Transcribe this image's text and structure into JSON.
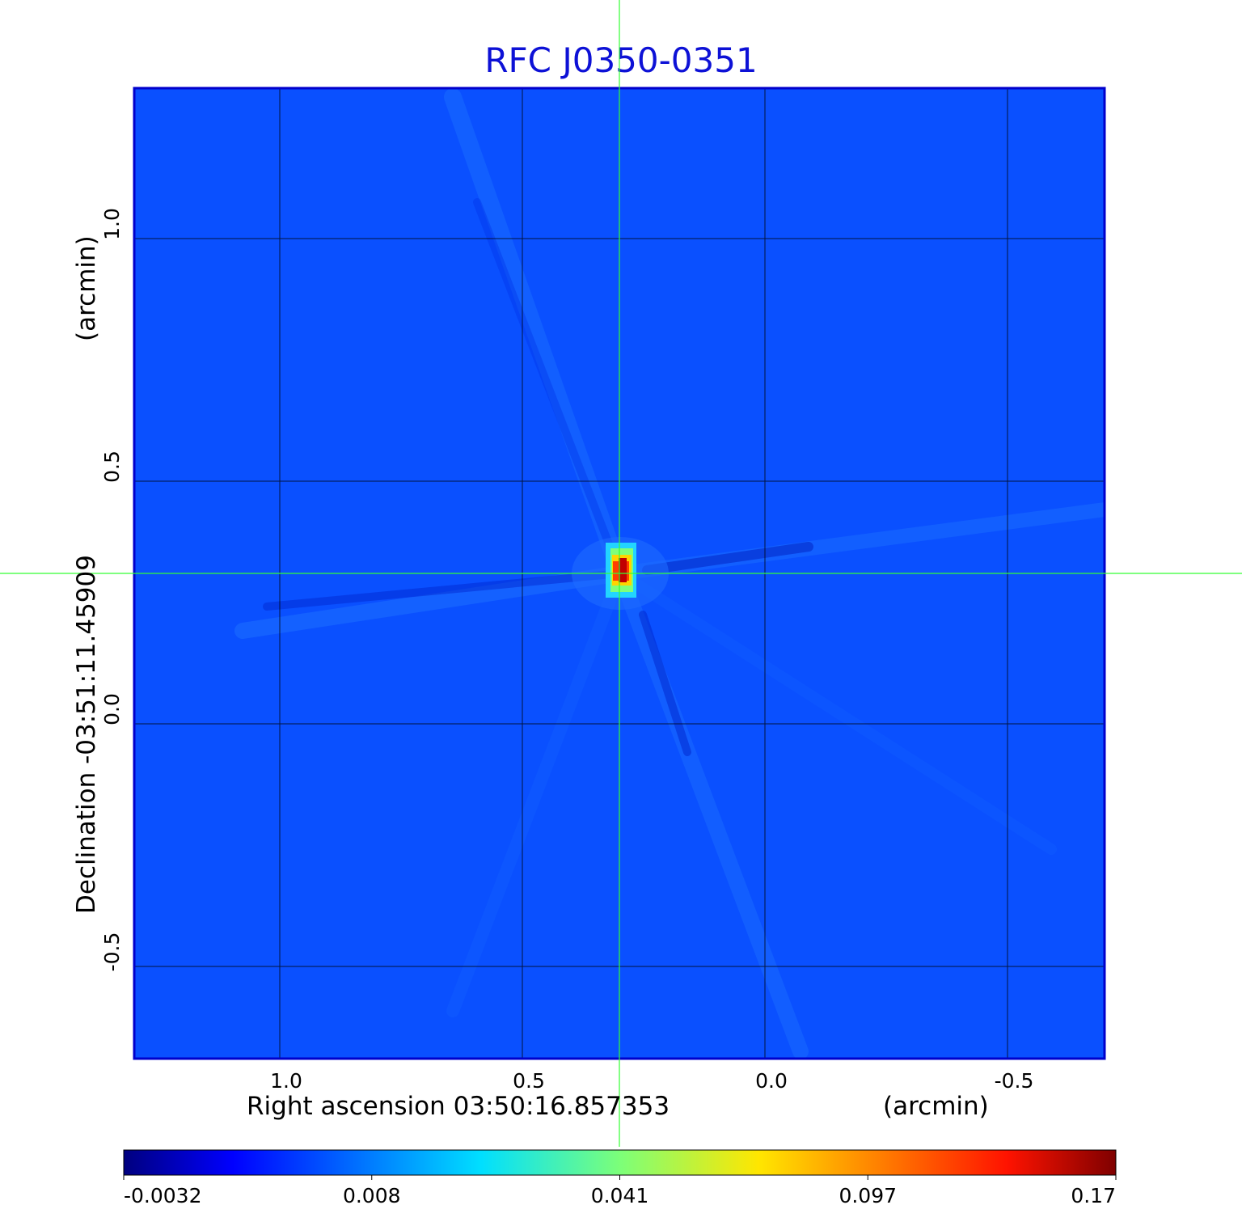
{
  "chart_data": {
    "type": "heatmap",
    "title": "RFC J0350-0351",
    "xlabel": "Right ascension  03:50:16.857353",
    "xunit": "(arcmin)",
    "ylabel": "Declination  -03:51:11.45909",
    "yunit": "(arcmin)",
    "xlim": [
      1.3,
      -0.7
    ],
    "ylim": [
      -0.69,
      1.31
    ],
    "x_ticks": [
      "1.0",
      "0.5",
      "0.0",
      "-0.5"
    ],
    "y_ticks": [
      "1.0",
      "0.5",
      "0.0",
      "-0.5"
    ],
    "grid": true,
    "crosshair": {
      "x": 0.3,
      "y": 0.31
    },
    "colorbar": {
      "colormap": "jet",
      "ticks": [
        "-0.0032",
        "0.008",
        "0.041",
        "0.097",
        "0.17"
      ],
      "range": [
        -0.0032,
        0.17
      ]
    },
    "peak": {
      "x": 0.3,
      "y": 0.31,
      "value": 0.17
    }
  }
}
